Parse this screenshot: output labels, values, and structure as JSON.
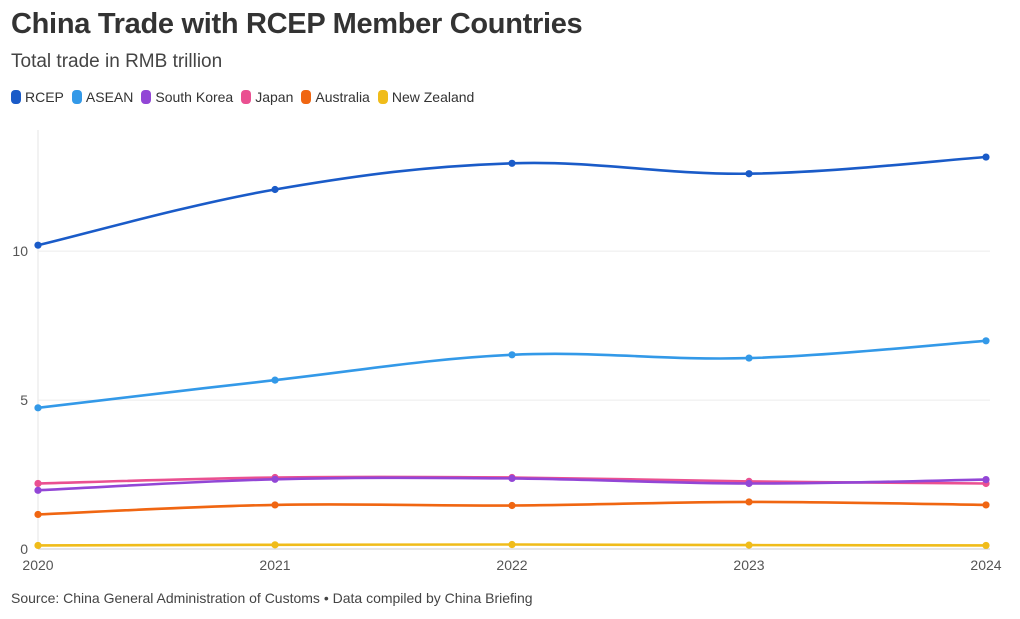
{
  "header": {
    "title": "China Trade with RCEP Member Countries",
    "subtitle": "Total trade in RMB trillion"
  },
  "footer": {
    "source": "Source: China General Administration of Customs • Data compiled by China Briefing"
  },
  "chart_data": {
    "type": "line",
    "title": "China Trade with RCEP Member Countries",
    "subtitle": "Total trade in RMB trillion",
    "xlabel": "",
    "ylabel": "",
    "x": [
      "2020",
      "2021",
      "2022",
      "2023",
      "2024"
    ],
    "ylim": [
      0,
      13.9
    ],
    "yticks": [
      0,
      5,
      10
    ],
    "grid": true,
    "legend_position": "top-left",
    "series": [
      {
        "name": "RCEP",
        "color": "#1a5bc8",
        "values": [
          10.2,
          12.07,
          12.95,
          12.6,
          13.16
        ]
      },
      {
        "name": "ASEAN",
        "color": "#3399e8",
        "values": [
          4.74,
          5.67,
          6.52,
          6.41,
          6.99
        ]
      },
      {
        "name": "South Korea",
        "color": "#9246d6",
        "values": [
          1.97,
          2.34,
          2.37,
          2.2,
          2.33
        ]
      },
      {
        "name": "Japan",
        "color": "#ea5091",
        "values": [
          2.2,
          2.4,
          2.4,
          2.27,
          2.2
        ]
      },
      {
        "name": "Australia",
        "color": "#f06612",
        "values": [
          1.16,
          1.48,
          1.46,
          1.58,
          1.48
        ]
      },
      {
        "name": "New Zealand",
        "color": "#f0bc1a",
        "values": [
          0.12,
          0.14,
          0.15,
          0.13,
          0.12
        ]
      }
    ]
  }
}
